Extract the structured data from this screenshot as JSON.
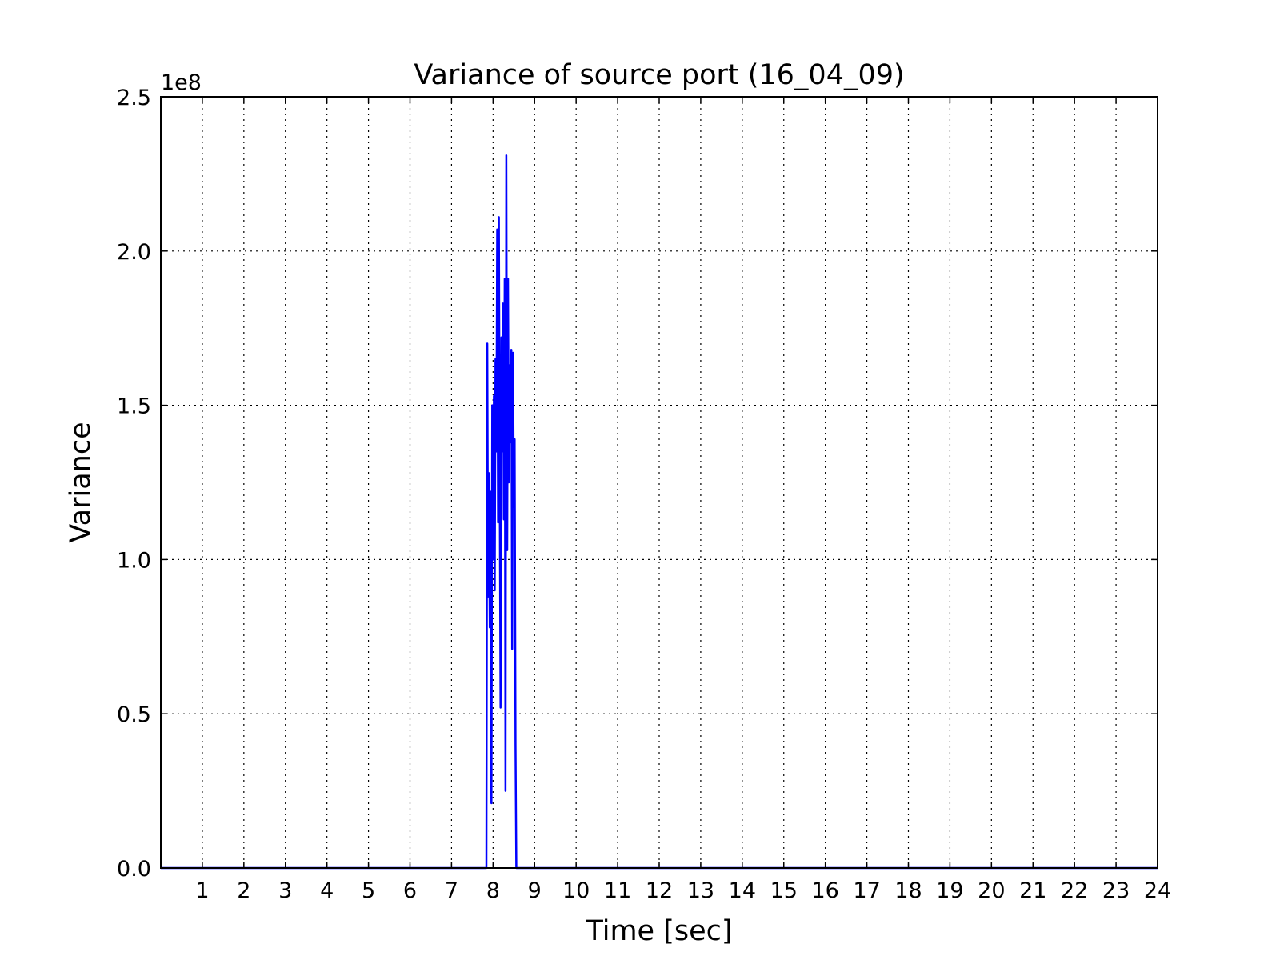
{
  "chart_data": {
    "type": "line",
    "title": "Variance of source port (16_04_09)",
    "xlabel": "Time [sec]",
    "ylabel": "Variance",
    "xlim": [
      0,
      24
    ],
    "ylim": [
      0,
      250000000
    ],
    "y_offset_label": "1e8",
    "x_ticks": [
      1,
      2,
      3,
      4,
      5,
      6,
      7,
      8,
      9,
      10,
      11,
      12,
      13,
      14,
      15,
      16,
      17,
      18,
      19,
      20,
      21,
      22,
      23,
      24
    ],
    "x_tick_labels": [
      "1",
      "2",
      "3",
      "4",
      "5",
      "6",
      "7",
      "8",
      "9",
      "10",
      "11",
      "12",
      "13",
      "14",
      "15",
      "16",
      "17",
      "18",
      "19",
      "20",
      "21",
      "22",
      "23",
      "24"
    ],
    "y_ticks": [
      0,
      50000000,
      100000000,
      150000000,
      200000000,
      250000000
    ],
    "y_tick_labels": [
      "0.0",
      "0.5",
      "1.0",
      "1.5",
      "2.0",
      "2.5"
    ],
    "grid": true,
    "line_color": "#0000ff",
    "series": [
      {
        "x": [
          0,
          7.84,
          7.86,
          7.88,
          7.9,
          7.92,
          7.94,
          7.96,
          7.98,
          8.0,
          8.02,
          8.04,
          8.06,
          8.08,
          8.1,
          8.12,
          8.14,
          8.16,
          8.18,
          8.2,
          8.22,
          8.24,
          8.26,
          8.28,
          8.3,
          8.32,
          8.34,
          8.36,
          8.38,
          8.4,
          8.42,
          8.44,
          8.46,
          8.48,
          8.5,
          8.52,
          8.54,
          8.56,
          8.58,
          8.6,
          8.62,
          8.64,
          8.66,
          8.68,
          8.7,
          8.72,
          8.74,
          8.76,
          8.78,
          8.8,
          24
        ],
        "y": [
          0,
          0,
          170000000,
          88000000,
          128000000,
          78000000,
          122000000,
          21000000,
          150000000,
          100000000,
          153000000,
          90000000,
          165000000,
          135000000,
          207000000,
          112000000,
          211000000,
          130000000,
          52000000,
          172000000,
          135000000,
          183000000,
          113000000,
          191000000,
          25000000,
          231000000,
          103000000,
          191000000,
          125000000,
          163000000,
          138000000,
          168000000,
          71000000,
          167000000,
          117000000,
          139000000,
          40000000,
          0,
          0,
          0,
          0,
          0,
          0,
          0,
          0,
          0,
          0,
          0,
          0,
          0,
          0
        ]
      }
    ]
  }
}
